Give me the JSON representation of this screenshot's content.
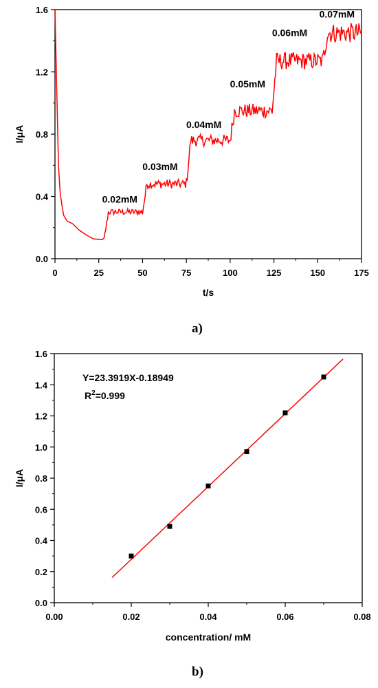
{
  "chart_data": [
    {
      "type": "line",
      "panel_label": "a)",
      "xlabel": "t/s",
      "ylabel": "I/μA",
      "xlim": [
        0,
        175
      ],
      "ylim": [
        0,
        1.6
      ],
      "x_ticks": [
        "0",
        "25",
        "50",
        "75",
        "100",
        "125",
        "150",
        "175"
      ],
      "y_ticks": [
        "0.0",
        "0.4",
        "0.8",
        "1.2",
        "1.6"
      ],
      "color": "#ff0000",
      "steps": [
        {
          "label": "0.02mM",
          "t_start": 28,
          "level": 0.3
        },
        {
          "label": "0.03mM",
          "t_start": 50,
          "level": 0.48
        },
        {
          "label": "0.04mM",
          "t_start": 75,
          "level": 0.76
        },
        {
          "label": "0.05mM",
          "t_start": 100,
          "level": 0.95
        },
        {
          "label": "0.06mM",
          "t_start": 124,
          "level": 1.27
        },
        {
          "label": "0.07mM",
          "t_start": 153,
          "level": 1.45
        }
      ],
      "baseline_points": [
        [
          0,
          1.6
        ],
        [
          1,
          1.1
        ],
        [
          2,
          0.6
        ],
        [
          3,
          0.42
        ],
        [
          4,
          0.34
        ],
        [
          5,
          0.28
        ],
        [
          7,
          0.24
        ],
        [
          10,
          0.22
        ],
        [
          14,
          0.18
        ],
        [
          18,
          0.15
        ],
        [
          22,
          0.13
        ],
        [
          25,
          0.12
        ],
        [
          27,
          0.12
        ]
      ],
      "annotation_labels": [
        {
          "text": "0.02mM",
          "x": 37,
          "y": 0.36
        },
        {
          "text": "0.03mM",
          "x": 60,
          "y": 0.57
        },
        {
          "text": "0.04mM",
          "x": 85,
          "y": 0.84
        },
        {
          "text": "0.05mM",
          "x": 110,
          "y": 1.1
        },
        {
          "text": "0.06mM",
          "x": 134,
          "y": 1.43
        },
        {
          "text": "0.07mM",
          "x": 161,
          "y": 1.55
        }
      ]
    },
    {
      "type": "scatter",
      "panel_label": "b)",
      "xlabel": "concentration/ mM",
      "ylabel": "I/μA",
      "xlim": [
        0.0,
        0.08
      ],
      "ylim": [
        0.0,
        1.6
      ],
      "x_ticks": [
        "0.00",
        "0.02",
        "0.04",
        "0.06",
        "0.08"
      ],
      "y_ticks": [
        "0.0",
        "0.2",
        "0.4",
        "0.6",
        "0.8",
        "1.0",
        "1.2",
        "1.4",
        "1.6"
      ],
      "points": [
        {
          "x": 0.02,
          "y": 0.3
        },
        {
          "x": 0.03,
          "y": 0.49
        },
        {
          "x": 0.04,
          "y": 0.75
        },
        {
          "x": 0.05,
          "y": 0.97
        },
        {
          "x": 0.06,
          "y": 1.22
        },
        {
          "x": 0.07,
          "y": 1.45
        }
      ],
      "fit": {
        "slope": 23.3919,
        "intercept": -0.18949,
        "x_range": [
          0.015,
          0.075
        ]
      },
      "equation": "Y=23.3919X-0.18949",
      "r2_prefix": "R",
      "r2_sup": "2",
      "r2_value": "=0.999",
      "marker_color": "#000000",
      "line_color": "#ff0000"
    }
  ]
}
